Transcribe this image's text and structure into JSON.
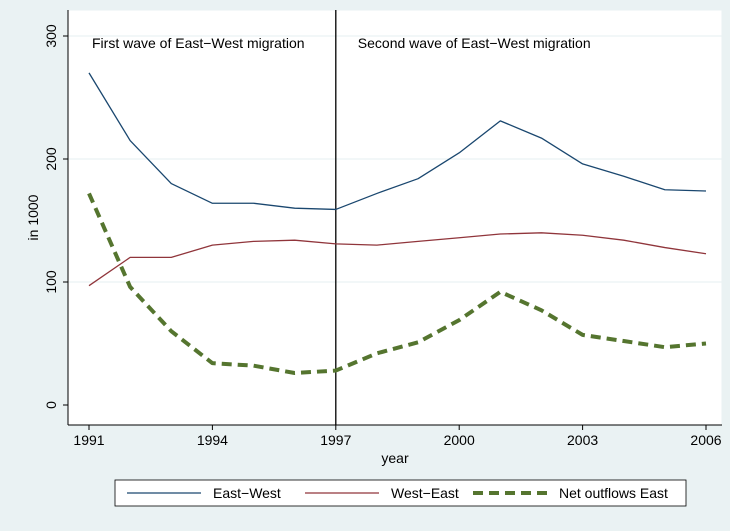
{
  "chart_data": {
    "type": "line",
    "xlabel": "year",
    "ylabel": "in 1000",
    "x": [
      1991,
      1992,
      1993,
      1994,
      1995,
      1996,
      1997,
      1998,
      1999,
      2000,
      2001,
      2002,
      2003,
      2004,
      2005,
      2006
    ],
    "series": [
      {
        "name": "East−West",
        "color": "#1a476f",
        "dash": false,
        "values": [
          270,
          215,
          180,
          164,
          164,
          160,
          159,
          172,
          184,
          205,
          231,
          217,
          196,
          186,
          175,
          174
        ]
      },
      {
        "name": "West−East",
        "color": "#90353b",
        "dash": false,
        "values": [
          97,
          120,
          120,
          130,
          133,
          134,
          131,
          130,
          133,
          136,
          139,
          140,
          138,
          134,
          128,
          123
        ]
      },
      {
        "name": "Net outflows East",
        "color": "#55752f",
        "dash": true,
        "values": [
          172,
          96,
          60,
          34,
          32,
          26,
          28,
          42,
          51,
          69,
          92,
          77,
          57,
          52,
          47,
          50
        ]
      }
    ],
    "xlim": [
      1991,
      2006
    ],
    "xticks": [
      1991,
      1994,
      1997,
      2000,
      2003,
      2006
    ],
    "ylim": [
      0,
      300
    ],
    "yticks": [
      0,
      100,
      200,
      300
    ],
    "grid": true,
    "xline": 1997,
    "annotations": [
      "First wave of East−West migration",
      "Second wave of East−West migration"
    ],
    "legend": "bottom"
  }
}
